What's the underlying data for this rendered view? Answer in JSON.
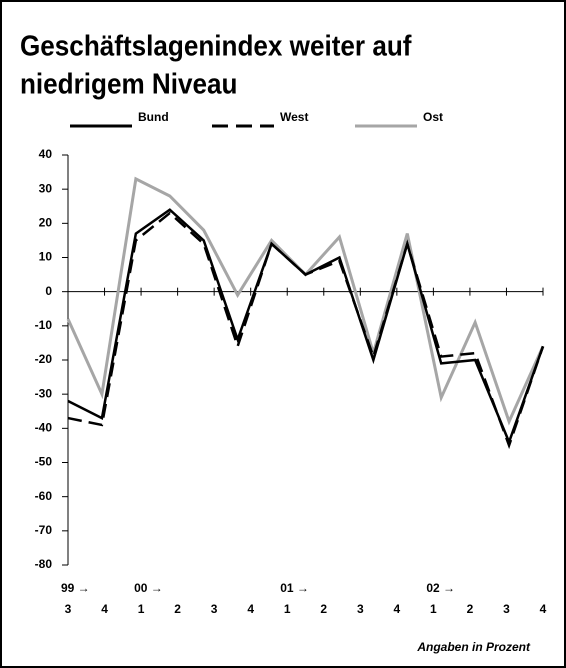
{
  "chart_data": {
    "type": "line",
    "title_lines": [
      "Geschäftslagenindex weiter auf",
      "niedrigem Niveau"
    ],
    "note": "Angaben in Prozent",
    "categories": [
      "3",
      "4",
      "1",
      "2",
      "3",
      "4",
      "1",
      "2",
      "3",
      "4",
      "1",
      "2",
      "3",
      "4",
      null
    ],
    "year_labels": [
      "99 →",
      null,
      "00 →",
      null,
      null,
      null,
      "01 →",
      null,
      null,
      null,
      "02 →",
      null,
      null,
      null,
      null
    ],
    "series": [
      {
        "name": "Bund",
        "color": "#000000",
        "dash": "solid",
        "values": [
          -32,
          -37,
          17,
          24,
          15,
          -14,
          14,
          5,
          10,
          -20,
          14,
          -21,
          -20,
          -44,
          -16
        ]
      },
      {
        "name": "West",
        "color": "#000000",
        "dash": "dashed",
        "values": [
          -37,
          -39,
          15,
          23,
          14,
          -16,
          14,
          5,
          9,
          -19,
          14,
          -19,
          -18,
          -45,
          -16
        ]
      },
      {
        "name": "Ost",
        "color": "#a6a6a6",
        "dash": "solid",
        "values": [
          -8,
          -30,
          33,
          28,
          18,
          -1,
          15,
          5,
          16,
          -18,
          17,
          -31,
          -9,
          -38,
          -16
        ]
      }
    ],
    "ylim": [
      -80,
      40
    ],
    "yticks": [
      -80,
      -70,
      -60,
      -50,
      -40,
      -30,
      -20,
      -10,
      0,
      10,
      20,
      30,
      40
    ]
  }
}
